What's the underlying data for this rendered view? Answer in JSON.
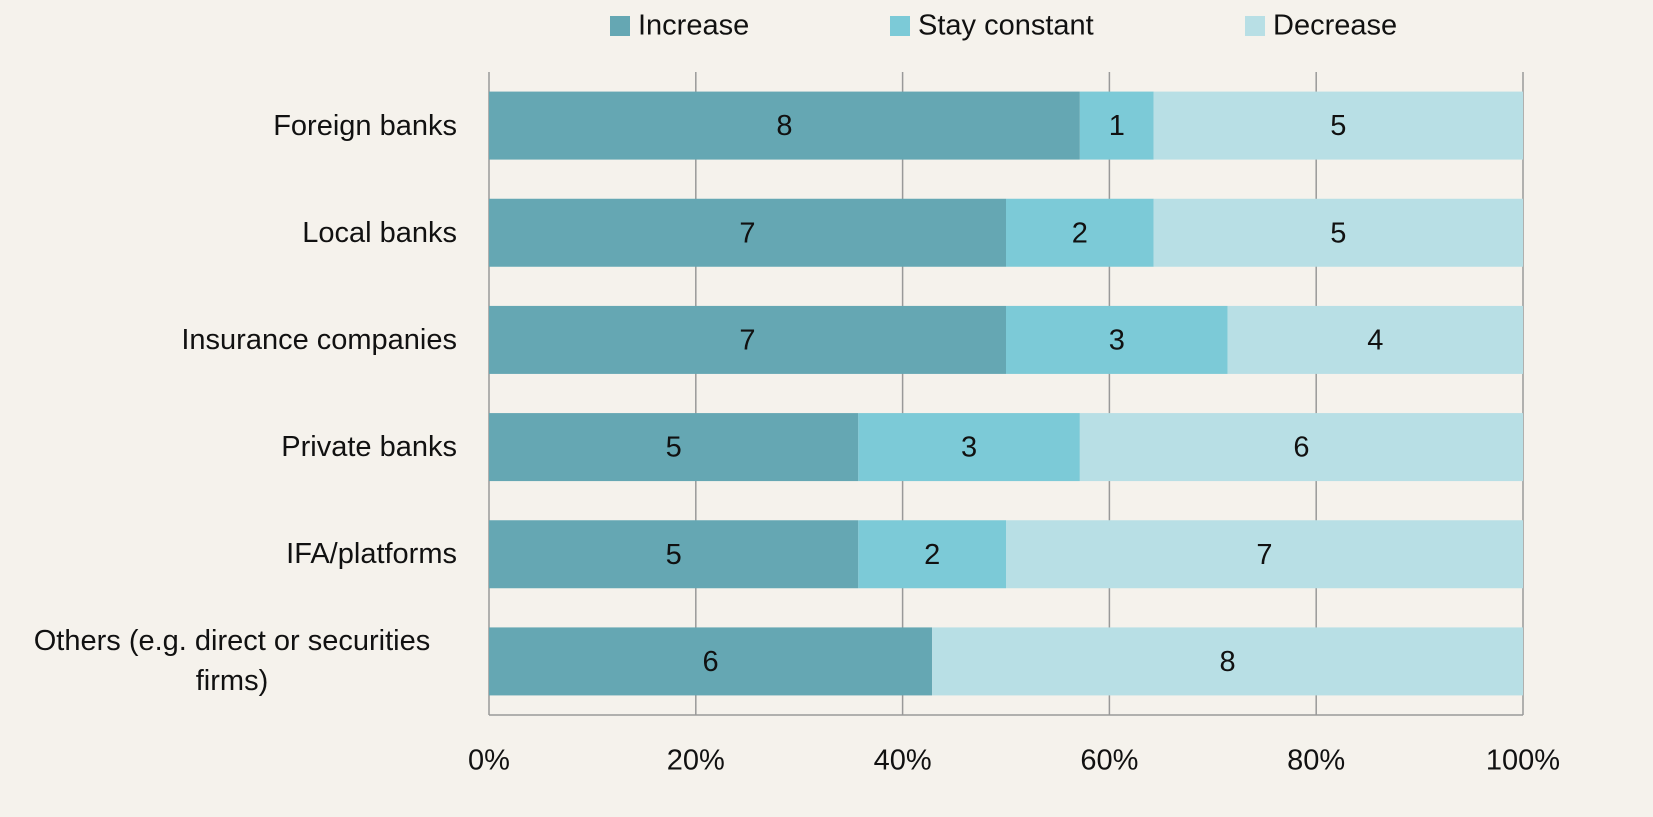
{
  "chart_data": {
    "type": "bar",
    "orientation": "horizontal",
    "stack": "percent",
    "categories": [
      "Foreign banks",
      "Local banks",
      "Insurance companies",
      "Private banks",
      "IFA/platforms",
      "Others (e.g. direct or securities firms)"
    ],
    "series": [
      {
        "name": "Increase",
        "color": "#65a7b3",
        "values": [
          8,
          7,
          7,
          5,
          5,
          6
        ]
      },
      {
        "name": "Stay constant",
        "color": "#7ccad7",
        "values": [
          1,
          2,
          3,
          3,
          2,
          null
        ]
      },
      {
        "name": "Decrease",
        "color": "#b8dfe5",
        "values": [
          5,
          5,
          4,
          6,
          7,
          8
        ]
      }
    ],
    "xlim": [
      0,
      100
    ],
    "xticks": [
      {
        "value": 0,
        "label": "0%"
      },
      {
        "value": 20,
        "label": "20%"
      },
      {
        "value": 40,
        "label": "40%"
      },
      {
        "value": 60,
        "label": "60%"
      },
      {
        "value": 80,
        "label": "80%"
      },
      {
        "value": 100,
        "label": "100%"
      }
    ],
    "grid": true,
    "legend": "top",
    "data_labels": true
  }
}
